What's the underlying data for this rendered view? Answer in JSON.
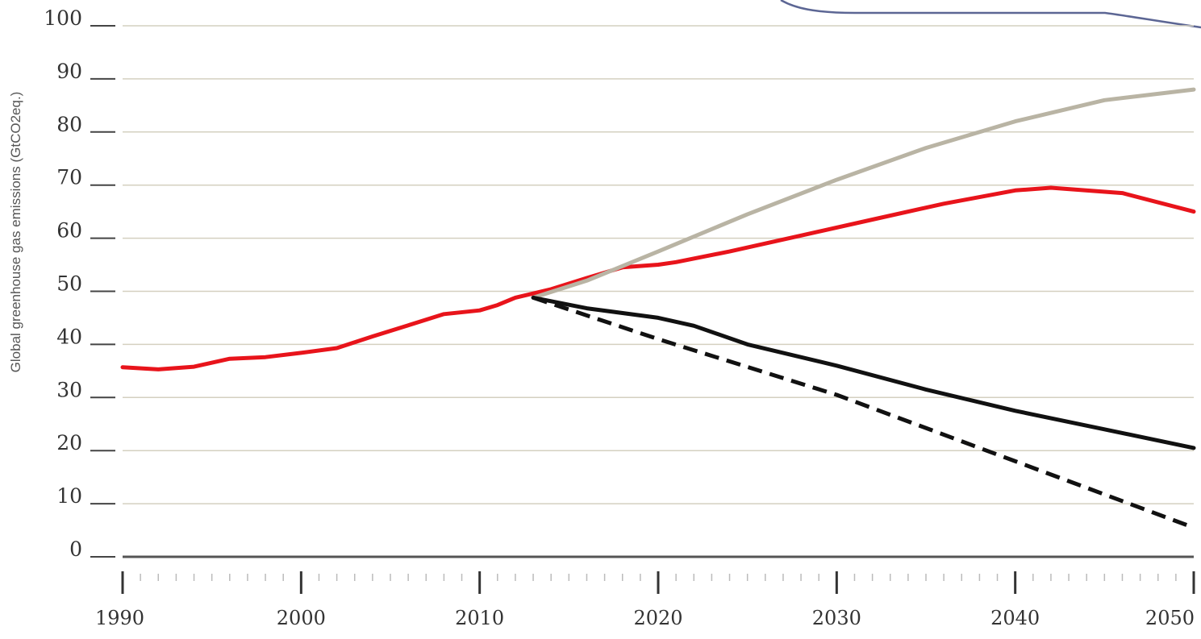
{
  "chart_data": {
    "type": "line",
    "title": "",
    "xlabel": "",
    "ylabel": "Global greenhouse gas emissions (GtCO2eq.)",
    "xlim": [
      1990,
      2050
    ],
    "ylim": [
      0,
      100
    ],
    "yticks": [
      "0",
      "10",
      "20",
      "30",
      "40",
      "50",
      "60",
      "70",
      "80",
      "90",
      "100"
    ],
    "xticks": [
      "1990",
      "2000",
      "2010",
      "2020",
      "2030",
      "2040",
      "2050"
    ],
    "grid": true,
    "colors": {
      "red": "#e8141b",
      "grey": "#b9b4a4",
      "black": "#111111",
      "grid": "#d4d0c0",
      "axis": "#555555"
    },
    "series": [
      {
        "color": "#e8141b",
        "style": "solid",
        "x": [
          1990,
          1992,
          1994,
          1996,
          1998,
          2000,
          2002,
          2004,
          2006,
          2008,
          2010,
          2011,
          2012,
          2014,
          2016,
          2018,
          2020,
          2021,
          2024,
          2028,
          2032,
          2036,
          2040,
          2042,
          2046,
          2050
        ],
        "y": [
          35.7,
          35.3,
          35.8,
          37.3,
          37.6,
          38.4,
          39.3,
          41.5,
          43.6,
          45.7,
          46.4,
          47.4,
          48.8,
          50.4,
          52.5,
          54.5,
          55.0,
          55.5,
          57.5,
          60.5,
          63.5,
          66.5,
          69.0,
          69.5,
          68.5,
          65.0
        ]
      },
      {
        "color": "#b9b4a4",
        "style": "solid",
        "x": [
          2013,
          2016,
          2020,
          2025,
          2030,
          2035,
          2040,
          2045,
          2050
        ],
        "y": [
          48.8,
          52.0,
          57.5,
          64.5,
          71.0,
          77.0,
          82.0,
          86.0,
          88.0
        ]
      },
      {
        "color": "#111111",
        "style": "solid",
        "x": [
          2013,
          2016,
          2020,
          2022,
          2025,
          2030,
          2035,
          2040,
          2045,
          2050
        ],
        "y": [
          48.8,
          46.8,
          45.0,
          43.5,
          40.0,
          36.0,
          31.5,
          27.5,
          24.0,
          20.5
        ]
      },
      {
        "color": "#111111",
        "style": "dashed",
        "x": [
          2013,
          2020,
          2030,
          2040,
          2050
        ],
        "y": [
          48.8,
          41.0,
          30.5,
          18.0,
          5.5
        ]
      }
    ]
  }
}
